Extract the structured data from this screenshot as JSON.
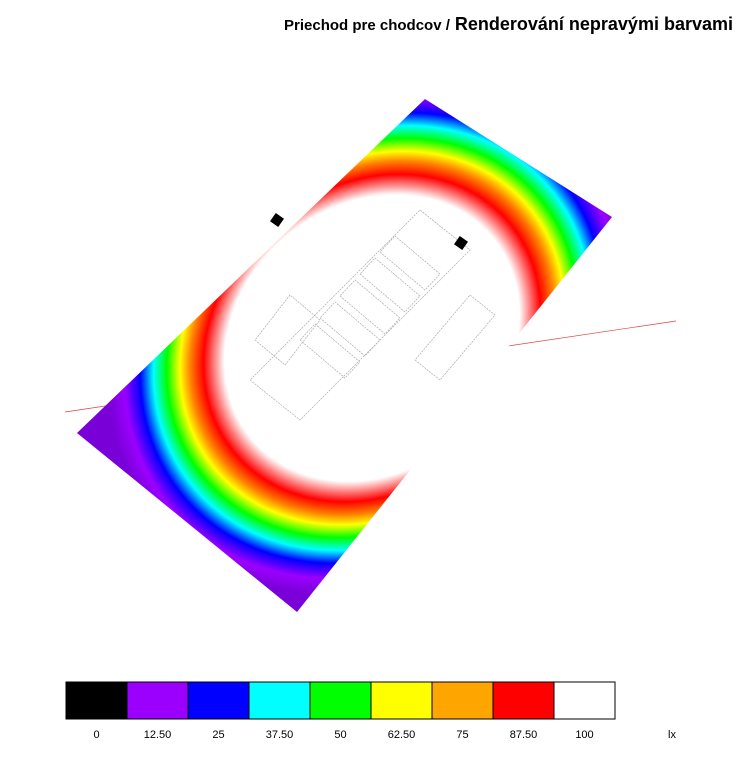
{
  "header": {
    "subtitle": "Priechod pre chodcov /",
    "title": "Renderování nepravými barvami"
  },
  "legend": {
    "unit": "lx",
    "items": [
      {
        "label": "0",
        "color": "#000000"
      },
      {
        "label": "12.50",
        "color": "#9b00ff"
      },
      {
        "label": "25",
        "color": "#0000ff"
      },
      {
        "label": "37.50",
        "color": "#00ffff"
      },
      {
        "label": "50",
        "color": "#00ff00"
      },
      {
        "label": "62.50",
        "color": "#ffff00"
      },
      {
        "label": "75",
        "color": "#ffa500"
      },
      {
        "label": "87.50",
        "color": "#ff0000"
      },
      {
        "label": "100",
        "color": "#ffffff"
      }
    ]
  }
}
